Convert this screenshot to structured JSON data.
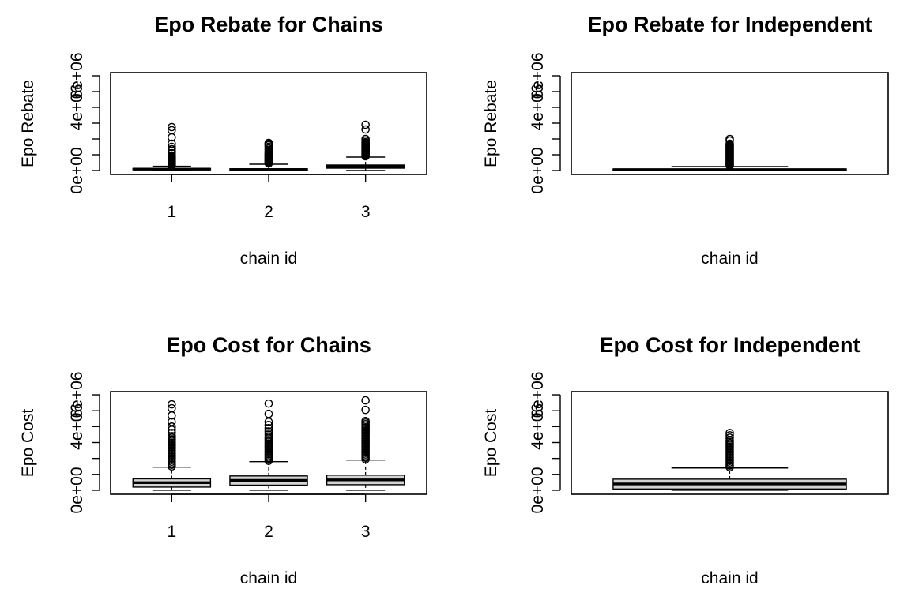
{
  "chart_data": [
    {
      "type": "box",
      "title": "Epo Rebate for Chains",
      "xlabel": "chain id",
      "ylabel": "Epo Rebate",
      "categories": [
        "1",
        "2",
        "3"
      ],
      "y_ticks": [
        0,
        1000000,
        2000000,
        3000000,
        4000000,
        5000000,
        6000000
      ],
      "y_tick_labels": [
        "0e+00",
        "",
        "",
        "",
        "4e+06",
        "",
        "6e+06"
      ],
      "ylim": [
        -250000,
        6200000
      ],
      "boxes": [
        {
          "category": "1",
          "min": 0,
          "q1": 50000,
          "median": 90000,
          "q3": 130000,
          "whisker_high": 270000,
          "outliers": [
            300000,
            350000,
            400000,
            450000,
            500000,
            550000,
            600000,
            650000,
            700000,
            750000,
            800000,
            850000,
            900000,
            950000,
            1100000,
            1250000,
            1350000,
            1500000,
            1700000,
            2100000,
            2550000,
            2750000
          ]
        },
        {
          "category": "2",
          "min": 0,
          "q1": 30000,
          "median": 60000,
          "q3": 110000,
          "whisker_high": 400000,
          "outliers": [
            450000,
            500000,
            550000,
            600000,
            650000,
            700000,
            750000,
            800000,
            850000,
            900000,
            950000,
            1000000,
            1050000,
            1100000,
            1200000,
            1300000,
            1400000,
            1500000,
            1600000,
            1650000,
            1700000,
            1750000
          ]
        },
        {
          "category": "3",
          "min": 0,
          "q1": 150000,
          "median": 250000,
          "q3": 350000,
          "whisker_high": 850000,
          "outliers": [
            900000,
            950000,
            1000000,
            1050000,
            1100000,
            1150000,
            1200000,
            1250000,
            1300000,
            1350000,
            1400000,
            1450000,
            1500000,
            1550000,
            1600000,
            1650000,
            1700000,
            1750000,
            1800000,
            1900000,
            2000000,
            2600000,
            2900000
          ]
        }
      ]
    },
    {
      "type": "box",
      "title": "Epo Rebate for Independent",
      "xlabel": "chain id",
      "ylabel": "Epo Rebate",
      "categories": [
        ""
      ],
      "y_ticks": [
        0,
        1000000,
        2000000,
        3000000,
        4000000,
        5000000,
        6000000
      ],
      "y_tick_labels": [
        "0e+00",
        "",
        "",
        "",
        "4e+06",
        "",
        "6e+06"
      ],
      "ylim": [
        -250000,
        6200000
      ],
      "boxes": [
        {
          "category": "",
          "min": 0,
          "q1": 20000,
          "median": 50000,
          "q3": 100000,
          "whisker_high": 250000,
          "outliers": [
            300000,
            350000,
            400000,
            450000,
            500000,
            550000,
            600000,
            650000,
            700000,
            750000,
            800000,
            850000,
            900000,
            950000,
            1000000,
            1050000,
            1100000,
            1150000,
            1200000,
            1250000,
            1300000,
            1350000,
            1400000,
            1450000,
            1500000,
            1550000,
            1600000,
            1650000,
            1700000,
            1900000,
            2000000
          ]
        }
      ]
    },
    {
      "type": "box",
      "title": "Epo Cost for Chains",
      "xlabel": "chain id",
      "ylabel": "Epo Cost",
      "categories": [
        "1",
        "2",
        "3"
      ],
      "y_ticks": [
        0,
        1000000,
        2000000,
        3000000,
        4000000,
        5000000,
        6000000
      ],
      "y_tick_labels": [
        "0e+00",
        "",
        "",
        "",
        "4e+06",
        "",
        "6e+06"
      ],
      "ylim": [
        -250000,
        6200000
      ],
      "boxes": [
        {
          "category": "1",
          "min": 0,
          "q1": 200000,
          "median": 480000,
          "q3": 720000,
          "whisker_high": 1450000,
          "outliers": [
            1500000,
            1600000,
            1700000,
            1800000,
            1900000,
            2000000,
            2100000,
            2200000,
            2300000,
            2400000,
            2500000,
            2600000,
            2700000,
            2800000,
            2900000,
            3000000,
            3100000,
            3200000,
            3300000,
            3400000,
            3600000,
            3800000,
            4000000,
            4300000,
            4700000,
            5150000,
            5400000
          ]
        },
        {
          "category": "2",
          "min": 0,
          "q1": 320000,
          "median": 620000,
          "q3": 900000,
          "whisker_high": 1800000,
          "outliers": [
            1850000,
            1950000,
            2050000,
            2150000,
            2250000,
            2350000,
            2450000,
            2550000,
            2650000,
            2750000,
            2850000,
            2950000,
            3050000,
            3150000,
            3250000,
            3350000,
            3500000,
            3700000,
            3900000,
            4100000,
            4300000,
            4800000,
            5450000
          ]
        },
        {
          "category": "3",
          "min": 0,
          "q1": 350000,
          "median": 650000,
          "q3": 950000,
          "whisker_high": 1900000,
          "outliers": [
            1950000,
            2050000,
            2150000,
            2250000,
            2350000,
            2450000,
            2550000,
            2650000,
            2750000,
            2850000,
            2950000,
            3050000,
            3150000,
            3250000,
            3350000,
            3450000,
            3550000,
            3650000,
            3750000,
            3850000,
            3950000,
            4050000,
            4150000,
            4250000,
            4350000,
            5050000,
            5650000
          ]
        }
      ]
    },
    {
      "type": "box",
      "title": "Epo Cost for Independent",
      "xlabel": "chain id",
      "ylabel": "Epo Cost",
      "categories": [
        ""
      ],
      "y_ticks": [
        0,
        1000000,
        2000000,
        3000000,
        4000000,
        5000000,
        6000000
      ],
      "y_tick_labels": [
        "0e+00",
        "",
        "",
        "",
        "4e+06",
        "",
        "6e+06"
      ],
      "ylim": [
        -250000,
        6200000
      ],
      "boxes": [
        {
          "category": "",
          "min": 0,
          "q1": 80000,
          "median": 400000,
          "q3": 700000,
          "whisker_high": 1400000,
          "outliers": [
            1450000,
            1550000,
            1650000,
            1750000,
            1850000,
            1950000,
            2050000,
            2150000,
            2250000,
            2350000,
            2450000,
            2550000,
            2650000,
            2750000,
            2850000,
            2950000,
            3050000,
            3150000,
            3300000,
            3450000,
            3600000
          ]
        }
      ]
    }
  ]
}
